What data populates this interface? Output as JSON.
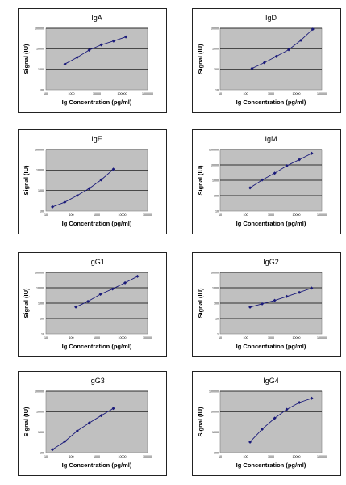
{
  "colors": {
    "plot_bg": "#c0c0c0",
    "series": "#1a1a7a",
    "grid": "#000000",
    "frame": "#222222"
  },
  "chart_data": [
    {
      "type": "scatter",
      "title": "IgA",
      "xlabel": "Ig Concentration (pg/ml)",
      "ylabel": "Signal (IU)",
      "log_x": true,
      "log_y": true,
      "grid": true,
      "xlim": [
        100,
        1000000
      ],
      "ylim": [
        100,
        100000
      ],
      "xticks": [
        "100",
        "1000",
        "10000",
        "100000",
        "1000000"
      ],
      "yticks": [
        "100",
        "1000",
        "10000",
        "100000"
      ],
      "series": [
        {
          "x": [
            560,
            1700,
            5000,
            15000,
            46000,
            140000
          ],
          "y": [
            1800,
            3800,
            8600,
            15500,
            24000,
            38000
          ]
        }
      ]
    },
    {
      "type": "scatter",
      "title": "IgD",
      "xlabel": "Ig Concentration (pg/ml)",
      "ylabel": "Signal (IU)",
      "log_x": true,
      "log_y": true,
      "grid": true,
      "xlim": [
        10,
        100000
      ],
      "ylim": [
        10,
        10000
      ],
      "xticks": [
        "10",
        "100",
        "1000",
        "10000",
        "100000"
      ],
      "yticks": [
        "10",
        "100",
        "1000",
        "10000"
      ],
      "series": [
        {
          "x": [
            180,
            550,
            1600,
            5000,
            15000,
            44000
          ],
          "y": [
            110,
            210,
            420,
            900,
            2600,
            9000
          ]
        }
      ]
    },
    {
      "type": "scatter",
      "title": "IgE",
      "xlabel": "Ig Concentration (pg/ml)",
      "ylabel": "Signal (IU)",
      "log_x": true,
      "log_y": true,
      "grid": true,
      "xlim": [
        10,
        100000
      ],
      "ylim": [
        100,
        100000
      ],
      "xticks": [
        "10",
        "100",
        "1000",
        "10000",
        "100000"
      ],
      "yticks": [
        "100",
        "1000",
        "10000",
        "100000"
      ],
      "series": [
        {
          "x": [
            18,
            55,
            170,
            500,
            1500,
            4500
          ],
          "y": [
            160,
            270,
            570,
            1250,
            3300,
            11000
          ]
        }
      ]
    },
    {
      "type": "scatter",
      "title": "IgM",
      "xlabel": "Ig Concentration (pg/ml)",
      "ylabel": "Signal (IU)",
      "log_x": true,
      "log_y": true,
      "grid": true,
      "xlim": [
        10,
        100000
      ],
      "ylim": [
        10,
        100000
      ],
      "xticks": [
        "10",
        "100",
        "1000",
        "10000",
        "100000"
      ],
      "yticks": [
        "10",
        "100",
        "1000",
        "10000",
        "100000"
      ],
      "series": [
        {
          "x": [
            150,
            450,
            1400,
            4200,
            13000,
            40000
          ],
          "y": [
            320,
            1050,
            2900,
            8800,
            22000,
            56000
          ]
        }
      ]
    },
    {
      "type": "scatter",
      "title": "IgG1",
      "xlabel": "Ig Concentration (pg/ml)",
      "ylabel": "Signal (IU)",
      "log_x": true,
      "log_y": true,
      "grid": true,
      "xlim": [
        10,
        100000
      ],
      "ylim": [
        10,
        100000
      ],
      "xticks": [
        "10",
        "100",
        "1000",
        "10000",
        "100000"
      ],
      "yticks": [
        "10",
        "100",
        "1000",
        "10000",
        "100000"
      ],
      "series": [
        {
          "x": [
            150,
            450,
            1400,
            4200,
            13000,
            40000
          ],
          "y": [
            560,
            1300,
            3800,
            8400,
            21000,
            55000
          ]
        }
      ]
    },
    {
      "type": "scatter",
      "title": "IgG2",
      "xlabel": "Ig Concentration (pg/ml)",
      "ylabel": "Signal (IU)",
      "log_x": true,
      "log_y": true,
      "grid": true,
      "xlim": [
        10,
        100000
      ],
      "ylim": [
        1,
        10000
      ],
      "xticks": [
        "10",
        "100",
        "1000",
        "10000",
        "100000"
      ],
      "yticks": [
        "1",
        "10",
        "100",
        "1000",
        "10000"
      ],
      "series": [
        {
          "x": [
            150,
            450,
            1400,
            4200,
            13000,
            40000
          ],
          "y": [
            55,
            90,
            150,
            270,
            500,
            950
          ]
        }
      ]
    },
    {
      "type": "scatter",
      "title": "IgG3",
      "xlabel": "Ig Concentration (pg/ml)",
      "ylabel": "Signal (IU)",
      "log_x": true,
      "log_y": true,
      "grid": true,
      "xlim": [
        10,
        100000
      ],
      "ylim": [
        100,
        100000
      ],
      "xticks": [
        "10",
        "100",
        "1000",
        "10000",
        "100000"
      ],
      "yticks": [
        "100",
        "1000",
        "10000",
        "100000"
      ],
      "series": [
        {
          "x": [
            18,
            55,
            170,
            500,
            1500,
            4500
          ],
          "y": [
            140,
            350,
            1150,
            2800,
            6500,
            14500
          ]
        }
      ]
    },
    {
      "type": "scatter",
      "title": "IgG4",
      "xlabel": "Ig Concentration (pg/ml)",
      "ylabel": "Signal (IU)",
      "log_x": true,
      "log_y": true,
      "grid": true,
      "xlim": [
        10,
        100000
      ],
      "ylim": [
        100,
        100000
      ],
      "xticks": [
        "10",
        "100",
        "1000",
        "10000",
        "100000"
      ],
      "yticks": [
        "100",
        "1000",
        "10000",
        "100000"
      ],
      "series": [
        {
          "x": [
            150,
            450,
            1400,
            4200,
            13000,
            40000
          ],
          "y": [
            330,
            1400,
            4800,
            13000,
            28000,
            45000
          ]
        }
      ]
    }
  ]
}
